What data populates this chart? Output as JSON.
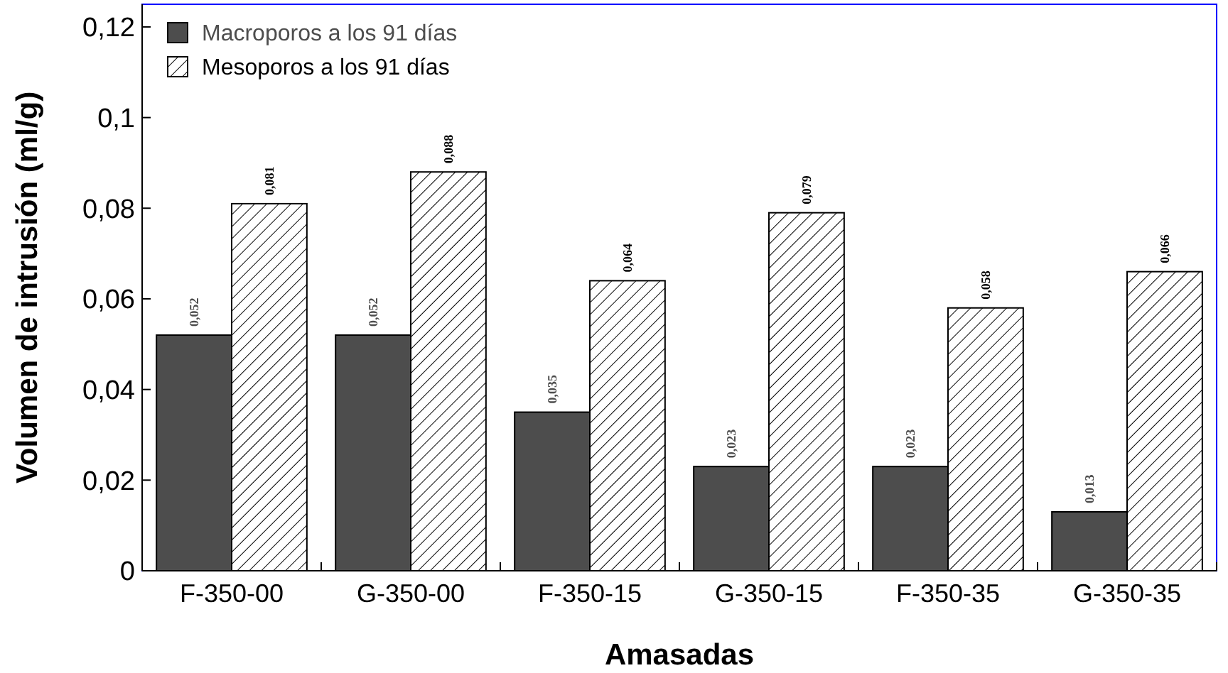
{
  "chart_data": {
    "type": "bar",
    "xlabel": "Amasadas",
    "ylabel": "Volumen de intrusión (ml/g)",
    "categories": [
      "F-350-00",
      "G-350-00",
      "F-350-15",
      "G-350-15",
      "F-350-35",
      "G-350-35"
    ],
    "series": [
      {
        "name": "Macroporos a los 91 días",
        "color": "#4d4d4d",
        "values": [
          0.052,
          0.052,
          0.035,
          0.023,
          0.023,
          0.013
        ],
        "value_labels": [
          "0,052",
          "0,052",
          "0,035",
          "0,023",
          "0,023",
          "0,013"
        ]
      },
      {
        "name": "Mesoporos a los 91 días",
        "color": "#000000",
        "values": [
          0.081,
          0.088,
          0.064,
          0.079,
          0.058,
          0.066
        ],
        "value_labels": [
          "0,081",
          "0,088",
          "0,064",
          "0,079",
          "0,058",
          "0,066"
        ]
      }
    ],
    "ylim": [
      0,
      0.125
    ],
    "yticks": [
      0,
      {
        "value": 0.02,
        "label": "0,02"
      },
      {
        "value": 0.04,
        "label": "0,04"
      },
      {
        "value": 0.06,
        "label": "0,06"
      },
      {
        "value": 0.08,
        "label": "0,08"
      },
      {
        "value": 0.1,
        "label": "0,1"
      },
      {
        "value": 0.12,
        "label": "0,12"
      }
    ],
    "legend": "top left",
    "grid": false
  }
}
